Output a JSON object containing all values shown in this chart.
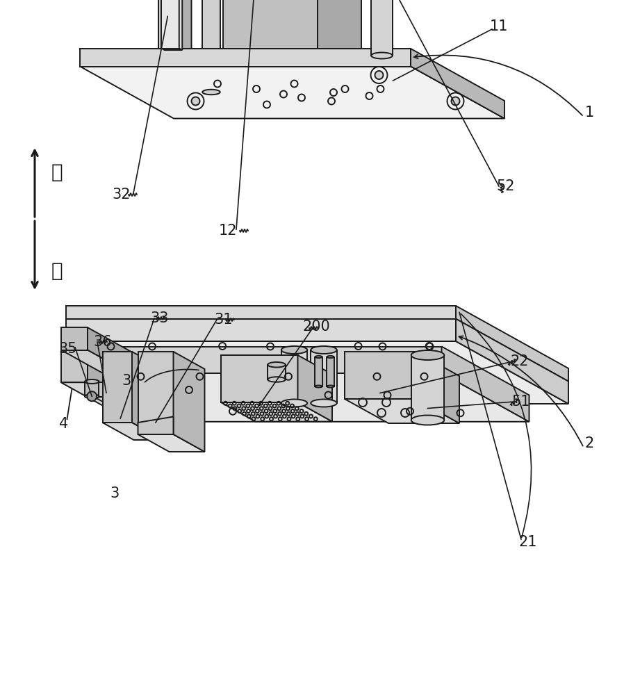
{
  "bg_color": "#ffffff",
  "line_color": "#1a1a1a",
  "lw": 1.4,
  "gray_top": "#f2f2f2",
  "gray_side_light": "#d8d8d8",
  "gray_side_dark": "#b8b8b8",
  "gray_face": "#e8e8e8",
  "gray_mid": "#c8c8c8",
  "gray_dark": "#a8a8a8",
  "white": "#ffffff"
}
